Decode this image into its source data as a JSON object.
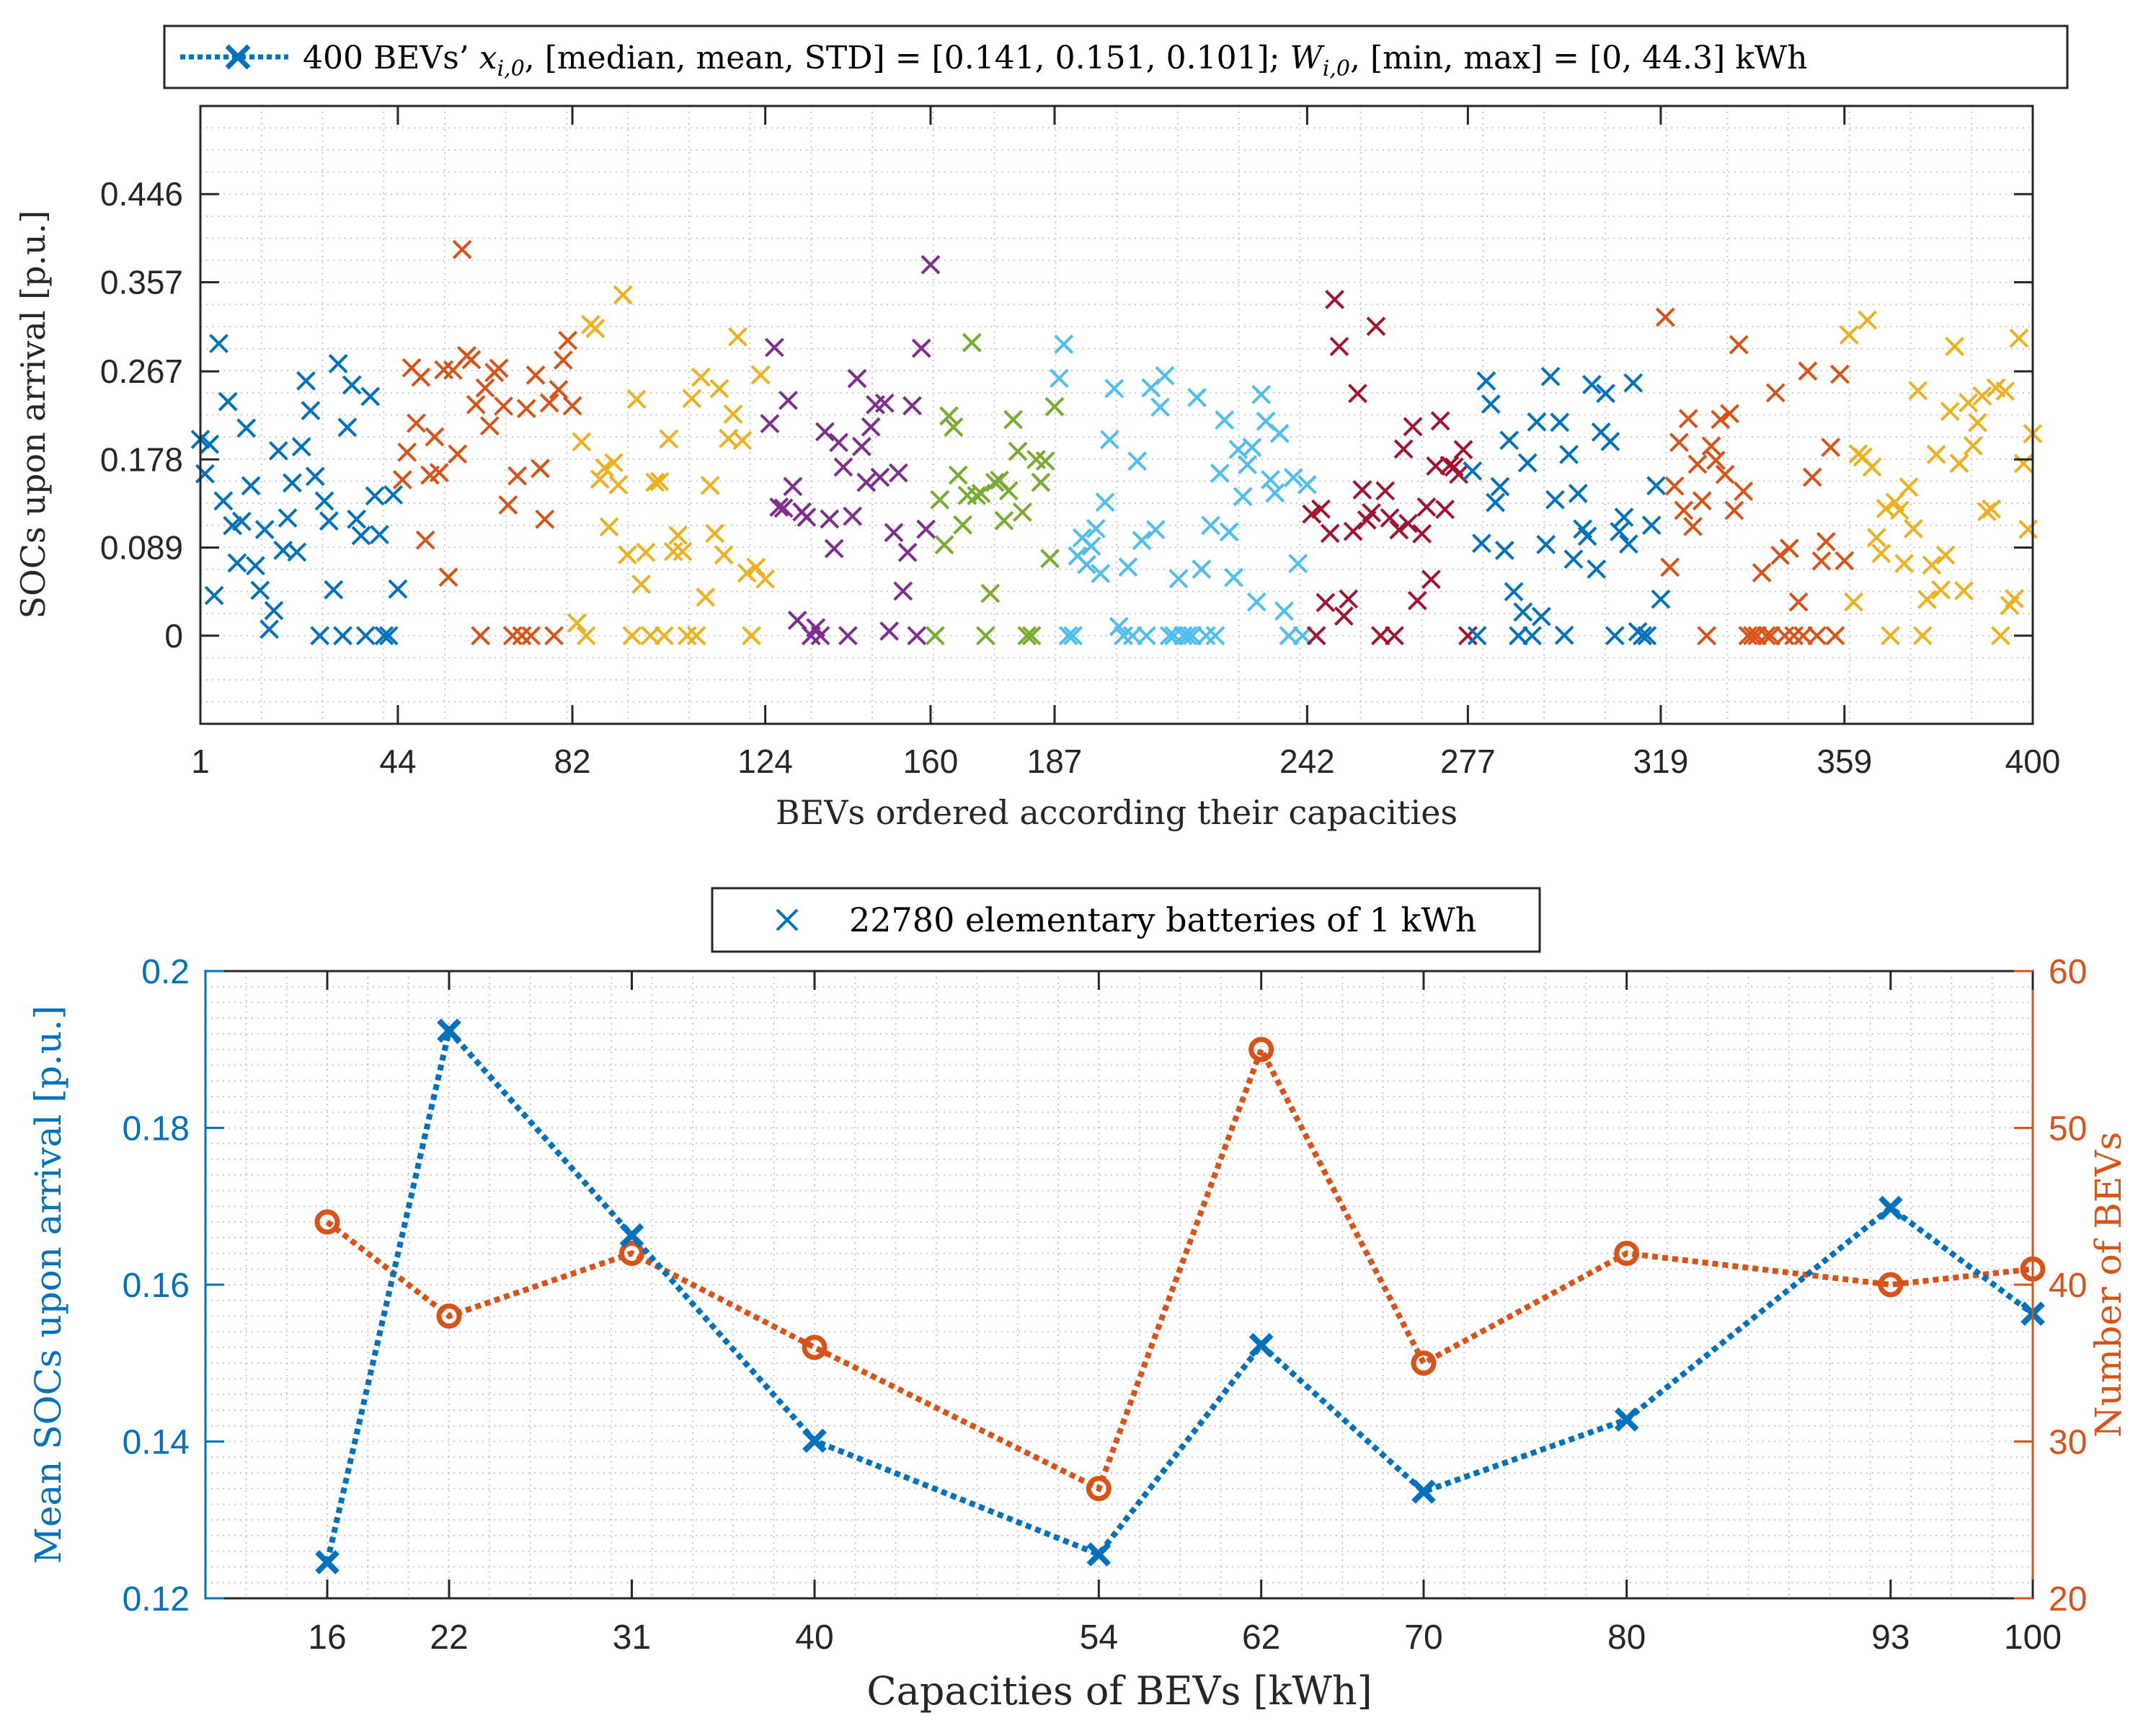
{
  "chart_data": [
    {
      "type": "scatter",
      "legend": {
        "marker": "x",
        "lead": "400 BEVs’ ",
        "symbol1": "x",
        "sub1": "i,0",
        "mid": ", [median, mean, STD] = [0.141, 0.151, 0.101]; ",
        "symbol2": "W",
        "sub2": "i,0",
        "tail": ", [min, max] = [0, 44.3] kWh",
        "placement": "top-outside"
      },
      "xlabel": "BEVs ordered according their capacities",
      "ylabel": "SOCs upon arrival [p.u.]",
      "xlim": [
        1,
        400
      ],
      "ylim": [
        -0.089,
        0.535
      ],
      "xticks": [
        1,
        44,
        82,
        124,
        160,
        187,
        242,
        277,
        319,
        359,
        400
      ],
      "yticks": [
        0,
        0.089,
        0.178,
        0.267,
        0.357,
        0.446
      ],
      "ytick_labels": [
        "0",
        "0.089",
        "0.178",
        "0.267",
        "0.357",
        "0.446"
      ],
      "grid": "minor-dotted",
      "groups": [
        {
          "capacity_kWh": 16,
          "color": "#0072bd",
          "from": 1,
          "to": 44
        },
        {
          "capacity_kWh": 22,
          "color": "#d95319",
          "from": 45,
          "to": 82
        },
        {
          "capacity_kWh": 31,
          "color": "#edb120",
          "from": 83,
          "to": 124
        },
        {
          "capacity_kWh": 40,
          "color": "#7e2f8e",
          "from": 125,
          "to": 160
        },
        {
          "capacity_kWh": 54,
          "color": "#77ac30",
          "from": 161,
          "to": 187
        },
        {
          "capacity_kWh": 62,
          "color": "#4dbeee",
          "from": 188,
          "to": 242
        },
        {
          "capacity_kWh": 70,
          "color": "#a2142f",
          "from": 243,
          "to": 277
        },
        {
          "capacity_kWh": 80,
          "color": "#0072bd",
          "from": 278,
          "to": 319
        },
        {
          "capacity_kWh": 93,
          "color": "#d95319",
          "from": 320,
          "to": 359
        },
        {
          "capacity_kWh": 100,
          "color": "#edb120",
          "from": 360,
          "to": 400
        }
      ]
    },
    {
      "type": "line",
      "legend": {
        "marker": "x",
        "label": "22780 elementary batteries of 1 kWh",
        "placement": "top-outside"
      },
      "xlabel": "Capacities of BEVs [kWh]",
      "ylabel_left": "Mean SOCs upon arrival [p.u.]",
      "ylabel_right": "Number of BEVs",
      "x": [
        16,
        22,
        31,
        40,
        54,
        62,
        70,
        80,
        93,
        100
      ],
      "xlim": [
        10,
        100
      ],
      "xticks": [
        16,
        22,
        31,
        40,
        54,
        62,
        70,
        80,
        93,
        100
      ],
      "ylim_left": [
        0.12,
        0.2
      ],
      "yticks_left": [
        "0.12",
        "0.14",
        "0.16",
        "0.18",
        "0.2"
      ],
      "ylim_right": [
        20,
        60
      ],
      "yticks_right": [
        "20",
        "30",
        "40",
        "50",
        "60"
      ],
      "grid": "minor-dotted",
      "series": [
        {
          "name": "Mean SOC",
          "axis": "left",
          "color": "#0072bd",
          "marker": "x",
          "values": [
            0.1246,
            0.1924,
            0.1663,
            0.1401,
            0.1256,
            0.1523,
            0.1336,
            0.1428,
            0.1698,
            0.1563
          ]
        },
        {
          "name": "Number of BEVs",
          "axis": "right",
          "color": "#d95319",
          "marker": "o",
          "values": [
            44,
            38,
            42,
            36,
            27,
            55,
            35,
            42,
            40,
            41
          ]
        }
      ]
    }
  ]
}
